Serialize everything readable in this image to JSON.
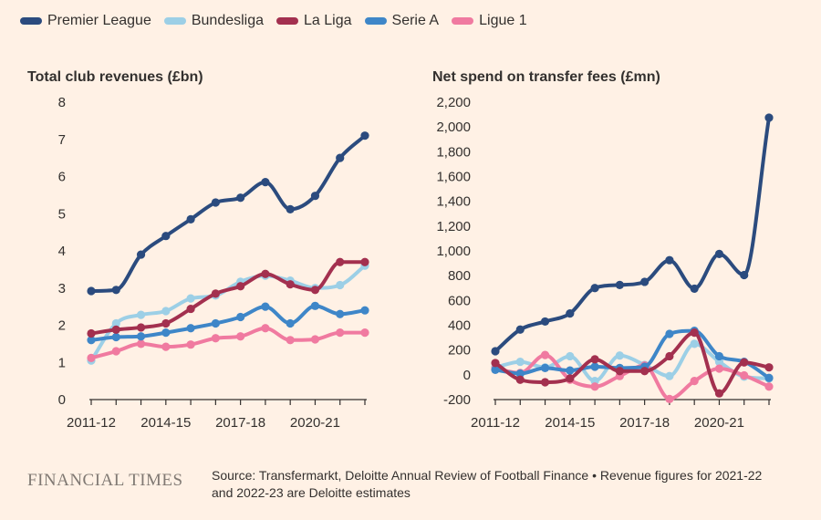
{
  "legend": [
    {
      "name": "Premier League",
      "color": "#2B4B7E"
    },
    {
      "name": "Bundesliga",
      "color": "#9CCFE6"
    },
    {
      "name": "La Liga",
      "color": "#A3304F"
    },
    {
      "name": "Serie A",
      "color": "#3E86C8"
    },
    {
      "name": "Ligue 1",
      "color": "#F07AA0"
    }
  ],
  "chart_data": [
    {
      "type": "line",
      "title": "Total club revenues (£bn)",
      "xlabel": "",
      "ylabel": "",
      "categories": [
        "2011-12",
        "2012-13",
        "2013-14",
        "2014-15",
        "2015-16",
        "2016-17",
        "2017-18",
        "2018-19",
        "2019-20",
        "2020-21",
        "2021-22",
        "2022-23"
      ],
      "x_tick_labels": [
        "2011-12",
        "2014-15",
        "2017-18",
        "2020-21"
      ],
      "x_tick_label_indices": [
        0,
        3,
        6,
        9
      ],
      "ylim": [
        0,
        8
      ],
      "y_ticks": [
        0,
        1,
        2,
        3,
        4,
        5,
        6,
        7,
        8
      ],
      "y_tick_labels": [
        "0",
        "1",
        "2",
        "3",
        "4",
        "5",
        "6",
        "7",
        "8"
      ],
      "series": [
        {
          "name": "Bundesliga",
          "values": [
            1.05,
            2.05,
            2.28,
            2.38,
            2.72,
            2.8,
            3.17,
            3.33,
            3.2,
            3.0,
            3.08,
            3.6
          ]
        },
        {
          "name": "Ligue 1",
          "values": [
            1.12,
            1.3,
            1.5,
            1.42,
            1.48,
            1.65,
            1.7,
            1.92,
            1.6,
            1.62,
            1.8,
            1.8
          ]
        },
        {
          "name": "Serie A",
          "values": [
            1.6,
            1.68,
            1.7,
            1.8,
            1.92,
            2.05,
            2.22,
            2.5,
            2.05,
            2.52,
            2.3,
            2.4
          ]
        },
        {
          "name": "La Liga",
          "values": [
            1.78,
            1.88,
            1.94,
            2.05,
            2.44,
            2.85,
            3.05,
            3.38,
            3.1,
            2.95,
            3.7,
            3.7
          ]
        },
        {
          "name": "Premier League",
          "values": [
            2.92,
            2.95,
            3.9,
            4.4,
            4.85,
            5.3,
            5.43,
            5.85,
            5.12,
            5.48,
            6.5,
            7.1
          ]
        }
      ]
    },
    {
      "type": "line",
      "title": "Net spend on transfer fees (£mn)",
      "xlabel": "",
      "ylabel": "",
      "categories": [
        "2011-12",
        "2012-13",
        "2013-14",
        "2014-15",
        "2015-16",
        "2016-17",
        "2017-18",
        "2018-19",
        "2019-20",
        "2020-21",
        "2021-22",
        "2022-23"
      ],
      "x_tick_labels": [
        "2011-12",
        "2014-15",
        "2017-18",
        "2020-21"
      ],
      "x_tick_label_indices": [
        0,
        3,
        6,
        9
      ],
      "ylim": [
        -200,
        2200
      ],
      "y_ticks": [
        -200,
        0,
        200,
        400,
        600,
        800,
        1000,
        1200,
        1400,
        1600,
        1800,
        2000,
        2200
      ],
      "y_tick_labels": [
        "-200",
        "0",
        "200",
        "400",
        "600",
        "800",
        "1,000",
        "1,200",
        "1,400",
        "1,600",
        "1,800",
        "2,000",
        "2,200"
      ],
      "series": [
        {
          "name": "Bundesliga",
          "values": [
            60,
            105,
            60,
            150,
            -50,
            155,
            80,
            -10,
            250,
            105,
            -15,
            -30
          ]
        },
        {
          "name": "Ligue 1",
          "values": [
            50,
            15,
            160,
            -40,
            -95,
            -10,
            75,
            -195,
            -50,
            50,
            -5,
            -95
          ]
        },
        {
          "name": "Serie A",
          "values": [
            40,
            10,
            55,
            35,
            65,
            55,
            65,
            330,
            355,
            150,
            105,
            -25
          ]
        },
        {
          "name": "La Liga",
          "values": [
            95,
            -40,
            -60,
            -30,
            125,
            30,
            30,
            150,
            340,
            -150,
            100,
            60
          ]
        },
        {
          "name": "Premier League",
          "values": [
            190,
            365,
            430,
            495,
            700,
            725,
            750,
            925,
            695,
            975,
            805,
            2075
          ]
        }
      ]
    }
  ],
  "footer": {
    "logo": "FINANCIAL TIMES",
    "source_line1": "Source: Transfermarkt, Deloitte Annual Review of Football Finance • Revenue figures for 2021-22",
    "source_line2": "and 2022-23 are Deloitte estimates"
  }
}
